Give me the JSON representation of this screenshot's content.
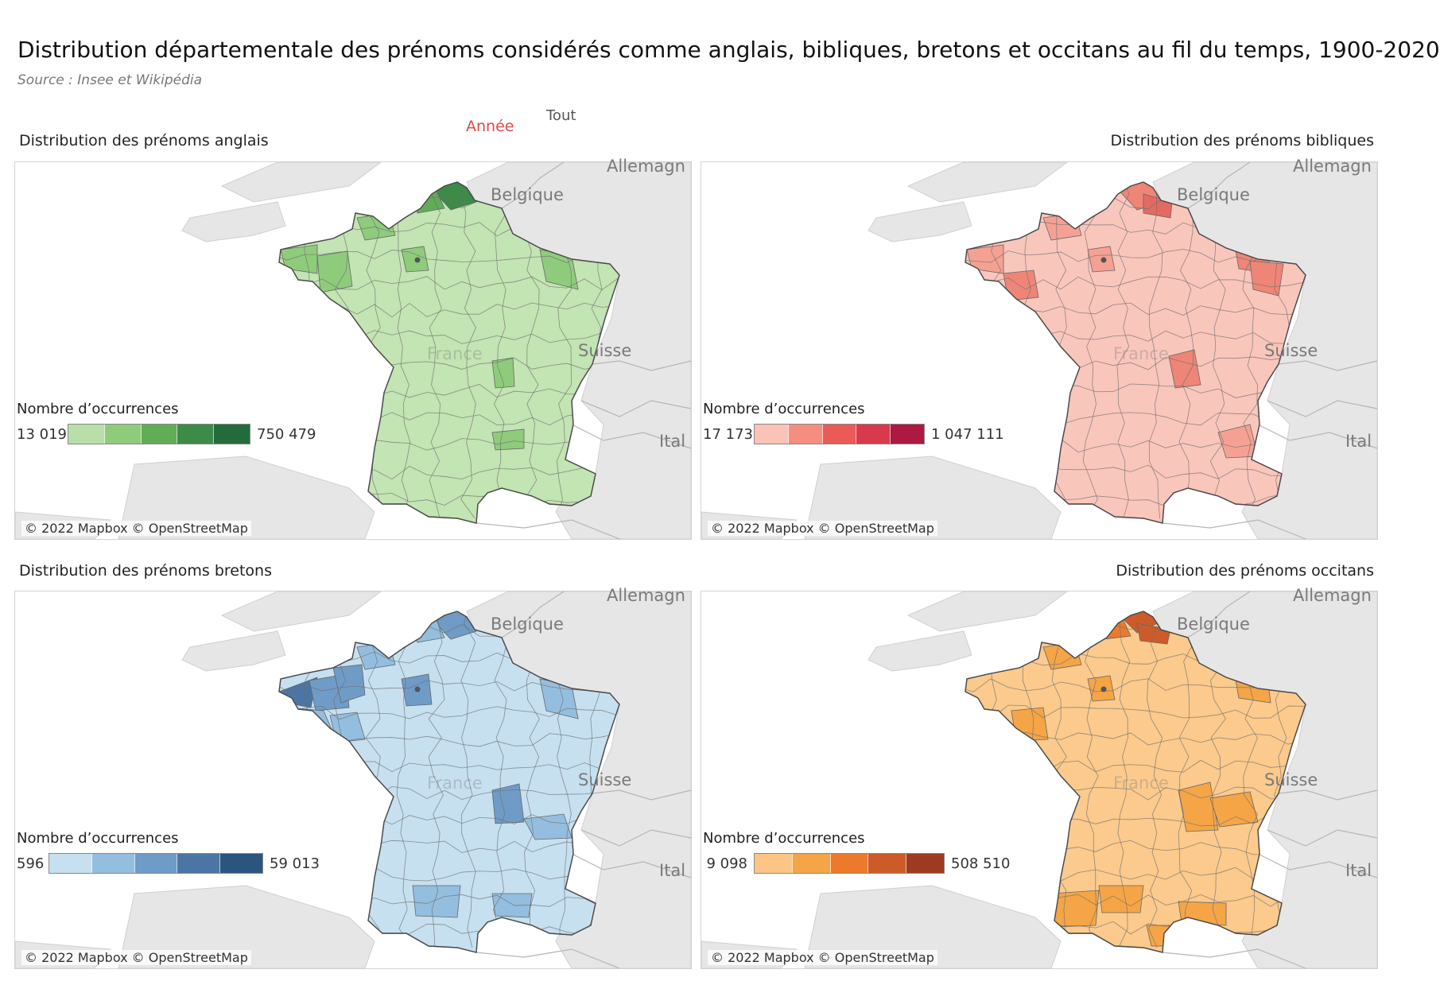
{
  "header": {
    "title": "Distribution départementale des prénoms considérés comme anglais, bibliques, bretons et occitans au fil du temps, 1900-2020",
    "source": "Source : Insee et Wikipédia"
  },
  "filter": {
    "label": "Année",
    "value": "Tout"
  },
  "map_labels": {
    "belgium": "Belgique",
    "germany": "Allemagn",
    "switzerland": "Suisse",
    "italy": "Ital",
    "france": "France"
  },
  "attribution": "© 2022 Mapbox © OpenStreetMap",
  "legend_title": "Nombre d’occurrences",
  "panels": [
    {
      "title": "Distribution des prénoms anglais",
      "legend": {
        "min": "13 019",
        "max": "750 479"
      },
      "palette": [
        "#b7dfa7",
        "#8ecc7c",
        "#62ac58",
        "#3d8b48",
        "#246b3b"
      ],
      "base_color": "#c3e4b3",
      "highlight_colors": [
        "#8ecc7c",
        "#62ac58",
        "#3d8b48"
      ]
    },
    {
      "title": "Distribution des prénoms bibliques",
      "legend": {
        "min": "17 173",
        "max": "1 047 111"
      },
      "palette": [
        "#fbc2b6",
        "#f58e7e",
        "#ea5a56",
        "#d83a4c",
        "#ad1940"
      ],
      "base_color": "#f9c6bc",
      "highlight_colors": [
        "#f4a193",
        "#ef8576",
        "#e36a63"
      ]
    },
    {
      "title": "Distribution des prénoms bretons",
      "legend": {
        "min": "596",
        "max": "59 013"
      },
      "palette": [
        "#c5e0f0",
        "#94bedf",
        "#6f9bc7",
        "#4b75a4",
        "#2b557f"
      ],
      "base_color": "#c6e0f0",
      "highlight_colors": [
        "#94bedf",
        "#6f9bc7",
        "#4b75a4"
      ]
    },
    {
      "title": "Distribution des prénoms occitans",
      "legend": {
        "min": "9 098",
        "max": "508 510"
      },
      "palette": [
        "#fdc585",
        "#f5a546",
        "#ec7a2c",
        "#cd5b2a",
        "#9c3b22"
      ],
      "base_color": "#fbca8c",
      "highlight_colors": [
        "#f5a546",
        "#ec7a2c",
        "#cd5b2a"
      ]
    }
  ]
}
